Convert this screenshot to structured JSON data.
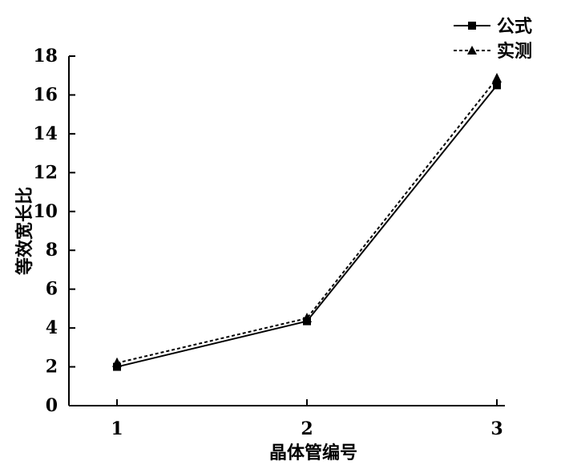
{
  "chart_data": {
    "type": "line",
    "categories": [
      "1",
      "2",
      "3"
    ],
    "x": [
      1,
      2,
      3
    ],
    "xlabel": "晶体管编号",
    "ylabel": "等效宽长比",
    "ylim": [
      0,
      18
    ],
    "yticks": [
      "0",
      "2",
      "4",
      "6",
      "8",
      "10",
      "12",
      "14",
      "16",
      "18"
    ],
    "grid": false,
    "legend_position": "top-right",
    "series": [
      {
        "name": "公式",
        "values": [
          2.0,
          4.35,
          16.5
        ],
        "line_style": "solid",
        "marker": "square",
        "color": "#000000"
      },
      {
        "name": "实测",
        "values": [
          2.2,
          4.5,
          16.85
        ],
        "line_style": "dashed",
        "marker": "triangle",
        "color": "#000000"
      }
    ]
  }
}
